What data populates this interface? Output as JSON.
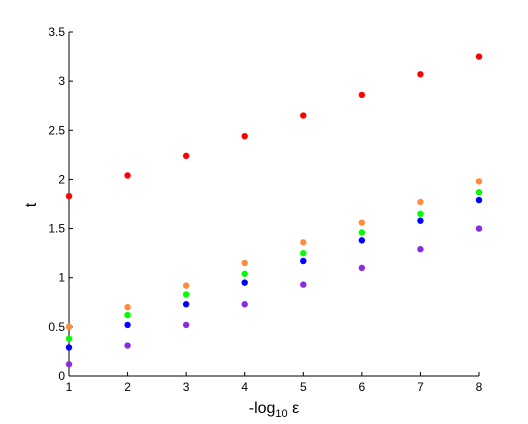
{
  "chart_data": {
    "type": "scatter",
    "xlabel": "-log",
    "xlabel_sub": "10",
    "xlabel_suffix": " ε",
    "ylabel": "t",
    "xlim": [
      1,
      8
    ],
    "ylim": [
      0,
      3.5
    ],
    "x_ticks": [
      "1",
      "2",
      "3",
      "4",
      "5",
      "6",
      "7",
      "8"
    ],
    "y_ticks": [
      "0",
      "0.5",
      "1",
      "1.5",
      "2",
      "2.5",
      "3",
      "3.5"
    ],
    "grid": false,
    "x": [
      1,
      2,
      3,
      4,
      5,
      6,
      7,
      8
    ],
    "series": [
      {
        "color": "#ff0000",
        "values": [
          1.83,
          2.04,
          2.24,
          2.44,
          2.65,
          2.86,
          3.07,
          3.25
        ]
      },
      {
        "color": "#ff8c3c",
        "values": [
          0.5,
          0.7,
          0.92,
          1.15,
          1.36,
          1.56,
          1.77,
          1.98
        ]
      },
      {
        "color": "#00ff00",
        "values": [
          0.38,
          0.62,
          0.83,
          1.04,
          1.25,
          1.46,
          1.65,
          1.87
        ]
      },
      {
        "color": "#0000ff",
        "values": [
          0.29,
          0.52,
          0.73,
          0.95,
          1.17,
          1.38,
          1.58,
          1.79
        ]
      },
      {
        "color": "#8a2be2",
        "values": [
          0.12,
          0.31,
          0.52,
          0.73,
          0.93,
          1.1,
          1.29,
          1.5
        ]
      }
    ]
  }
}
